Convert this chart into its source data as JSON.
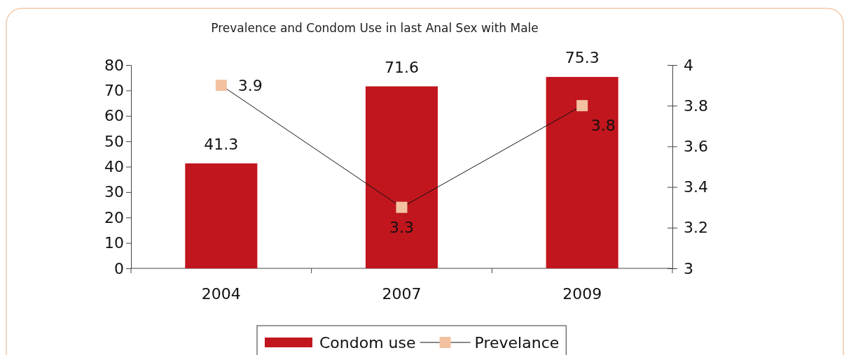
{
  "chart_data": {
    "type": "bar",
    "title": "Prevalence and Condom Use in last Anal Sex with Male",
    "categories": [
      "2004",
      "2007",
      "2009"
    ],
    "series": [
      {
        "name": "Condom use",
        "color": "#c1161e",
        "values": [
          41.3,
          71.6,
          75.3
        ]
      },
      {
        "name": "Prevelance",
        "type": "line",
        "axis": "y2",
        "color": "#f3c1a0",
        "values": [
          3.9,
          3.3,
          3.8
        ],
        "marker": "square"
      }
    ],
    "ylim": [
      0,
      80
    ],
    "yticks": [
      0,
      10,
      20,
      30,
      40,
      50,
      60,
      70,
      80
    ],
    "y2lim": [
      3,
      4
    ],
    "y2ticks": [
      3,
      3.2,
      3.4,
      3.6,
      3.8,
      4
    ],
    "data_labels": true,
    "legend": "bottom",
    "grid": false
  }
}
